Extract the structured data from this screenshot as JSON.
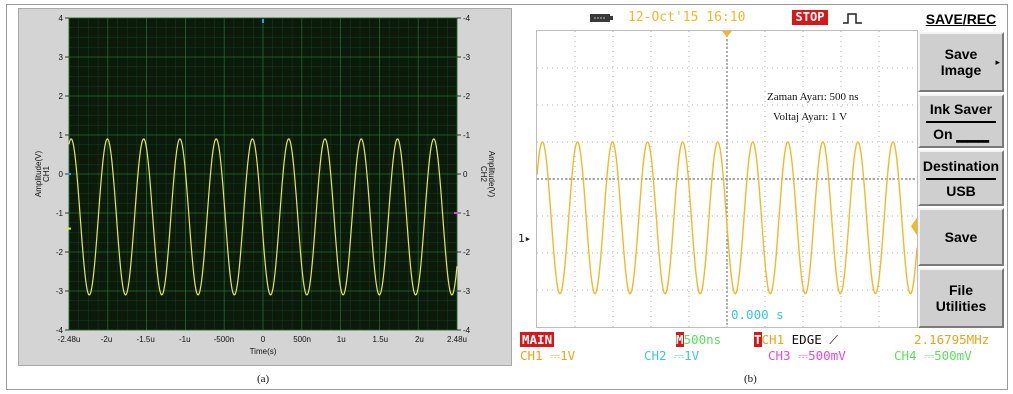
{
  "panel_a": {
    "caption": "(a)",
    "y_left_label": "Amplitude(V)",
    "y_left_sub": "CH1",
    "y_right_label": "Amplitude(V)",
    "y_right_sub": "CH2",
    "x_label": "Time(s)",
    "y_ticks": [
      "4",
      "3",
      "2",
      "1",
      "0",
      "-1",
      "-2",
      "-3",
      "-4"
    ],
    "y_ticks_right": [
      "-4",
      "-3",
      "-2",
      "-1",
      "0",
      "-1",
      "-2",
      "-3",
      "-4"
    ],
    "x_ticks": [
      "-2.48u",
      "-2u",
      "-1.5u",
      "-1u",
      "-500n",
      "0",
      "500n",
      "1u",
      "1.5u",
      "2u",
      "2.48u"
    ],
    "colors": {
      "plot_bg": "#0b1a0b",
      "grid": "#1f6b2a",
      "trace": "#e6e65a",
      "frame": "#d4d4d4"
    }
  },
  "panel_b": {
    "caption": "(b)",
    "date": "12-Oct'15 16:10",
    "status": "STOP",
    "annotation_time": "Zaman Ayarı: 500 ns",
    "annotation_volt": "Voltaj Ayarı: 1 V",
    "ch_marker": "1",
    "time_offset": "0.000 s",
    "mode": "MAIN",
    "timebase": "500ns",
    "trigger_m": "M",
    "trigger_t": "T",
    "trigger_src": "CH1",
    "trigger_type": "EDGE",
    "frequency": "2.16795MHz",
    "channels": [
      {
        "name": "CH1",
        "scale": "1V"
      },
      {
        "name": "CH2",
        "scale": "1V"
      },
      {
        "name": "CH3",
        "scale": "500mV"
      },
      {
        "name": "CH4",
        "scale": "500mV"
      }
    ],
    "menu": {
      "title": "SAVE/REC",
      "save_image": "Save Image",
      "ink_saver": "Ink Saver",
      "ink_saver_value": "On",
      "destination": "Destination",
      "destination_value": "USB",
      "save": "Save",
      "file_utilities": "File Utilities"
    },
    "colors": {
      "trace": "#f2b82a",
      "ch1": "#e8a31c",
      "ch2": "#3cc6e0",
      "ch3": "#e04ce0",
      "ch4": "#5ce05c",
      "stop_bg": "#d81818",
      "main_bg": "#d81818"
    }
  }
}
